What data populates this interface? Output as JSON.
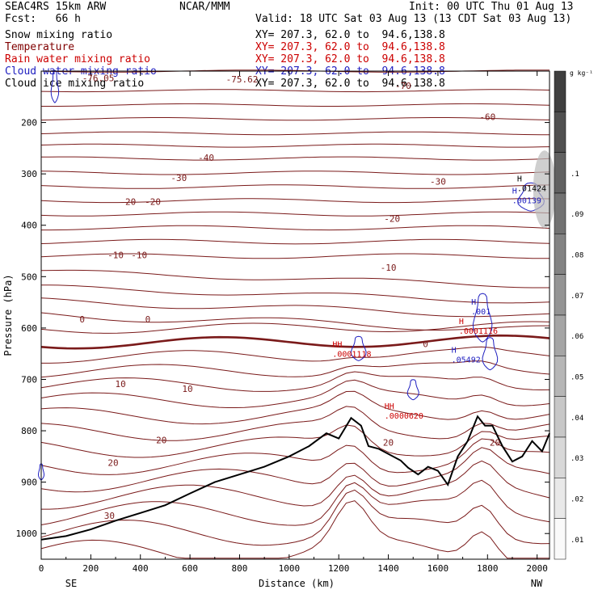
{
  "header": {
    "model": "SEAC4RS 15km ARW",
    "center": "NCAR/MMM",
    "init": "Init: 00 UTC Thu 01 Aug 13",
    "fcst": "Fcst:   66 h",
    "valid": "Valid: 18 UTC Sat 03 Aug 13 (13 CDT Sat 03 Aug 13)"
  },
  "legend": {
    "xy_text": "XY= 207.3, 62.0 to  94.6,138.8",
    "fields": [
      {
        "name": "Snow mixing ratio",
        "color": "#000000"
      },
      {
        "name": "Temperature",
        "color": "#800000"
      },
      {
        "name": "Rain water mixing ratio",
        "color": "#cc0000"
      },
      {
        "name": "Cloud water mixing ratio",
        "color": "#2020c0"
      },
      {
        "name": "Cloud ice mixing ratio",
        "color": "#000000"
      }
    ]
  },
  "colorbar": {
    "unit": "g kg⁻¹",
    "labels": [
      ".01",
      ".02",
      ".03",
      ".04",
      ".05",
      ".06",
      ".07",
      ".08",
      ".09",
      ".1"
    ]
  },
  "chart_data": {
    "type": "line",
    "title": "",
    "xlabel": "Distance (km)",
    "ylabel": "Pressure (hPa)",
    "xlim": [
      0,
      2050
    ],
    "ylim": [
      1050,
      100
    ],
    "xticks": [
      "0",
      "200",
      "400",
      "600",
      "800",
      "1000",
      "1200",
      "1400",
      "1600",
      "1800",
      "2000"
    ],
    "yticks": [
      "200",
      "300",
      "400",
      "500",
      "600",
      "700",
      "800",
      "900",
      "1000"
    ],
    "x_end_labels": {
      "left": "SE",
      "right": "NW"
    },
    "temperature_labels": [
      {
        "text": "-75.62",
        "x": 810,
        "p": 116
      },
      {
        "text": "-76.05",
        "x": 230,
        "p": 113
      },
      {
        "text": "-70",
        "x": 1460,
        "p": 128
      },
      {
        "text": "-60",
        "x": 1800,
        "p": 189
      },
      {
        "text": "-40",
        "x": 665,
        "p": 268
      },
      {
        "text": "-30",
        "x": 555,
        "p": 308
      },
      {
        "text": "-30",
        "x": 1600,
        "p": 315
      },
      {
        "text": "-20",
        "x": 350,
        "p": 354
      },
      {
        "text": "-20",
        "x": 450,
        "p": 354
      },
      {
        "text": "-20",
        "x": 1415,
        "p": 387
      },
      {
        "text": "-10",
        "x": 300,
        "p": 458
      },
      {
        "text": "-10",
        "x": 395,
        "p": 458
      },
      {
        "text": "-10",
        "x": 1400,
        "p": 482
      },
      {
        "text": "0",
        "x": 165,
        "p": 583
      },
      {
        "text": "0",
        "x": 430,
        "p": 583
      },
      {
        "text": "0",
        "x": 1550,
        "p": 631
      },
      {
        "text": "10",
        "x": 320,
        "p": 709
      },
      {
        "text": "10",
        "x": 590,
        "p": 718
      },
      {
        "text": "20",
        "x": 290,
        "p": 862
      },
      {
        "text": "20",
        "x": 485,
        "p": 818
      },
      {
        "text": "20",
        "x": 1400,
        "p": 823
      },
      {
        "text": "20",
        "x": 1830,
        "p": 823
      },
      {
        "text": "30",
        "x": 275,
        "p": 965
      }
    ],
    "maxima_labels": [
      {
        "h": "H",
        "value": ".01424",
        "x": 1965,
        "p": 327,
        "color": "#000000"
      },
      {
        "h": "H",
        "value": ".00139",
        "x": 1945,
        "p": 351,
        "color": "#2020c0"
      },
      {
        "h": "H",
        "value": ".001",
        "x": 1780,
        "p": 567,
        "color": "#2020c0"
      },
      {
        "h": "H",
        "value": ".0001116",
        "x": 1730,
        "p": 605,
        "color": "#cc0000"
      },
      {
        "h": "H",
        "value": ".05492",
        "x": 1700,
        "p": 661,
        "color": "#2020c0"
      },
      {
        "h": "HH",
        "value": ".0001118",
        "x": 1220,
        "p": 650,
        "color": "#cc0000"
      },
      {
        "h": "HH",
        "value": ".0000620",
        "x": 1430,
        "p": 770,
        "color": "#cc0000"
      }
    ]
  }
}
